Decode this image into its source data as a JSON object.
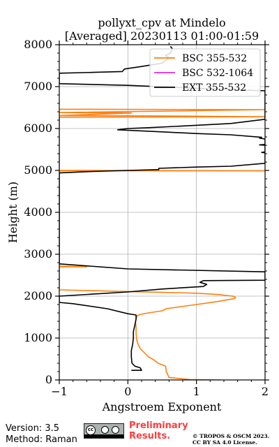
{
  "chart_data": {
    "type": "line",
    "title": "pollyxt_cpv at Mindelo",
    "subtitle": "[Averaged] 20230113 01:00-01:59",
    "xlabel": "Angstroem Exponent",
    "ylabel": "Height (m)",
    "xlim": [
      -1,
      2
    ],
    "ylim": [
      0,
      8000
    ],
    "x_ticks": [
      -1,
      0,
      1,
      2
    ],
    "x_tick_labels": [
      "−1",
      "0",
      "1",
      "2"
    ],
    "y_ticks": [
      0,
      1000,
      2000,
      3000,
      4000,
      5000,
      6000,
      7000,
      8000
    ],
    "y_tick_labels": [
      "0",
      "1000",
      "2000",
      "3000",
      "4000",
      "5000",
      "6000",
      "7000",
      "8000"
    ],
    "grid": true,
    "legend_position": "top-right",
    "series": [
      {
        "name": "BSC 355-532",
        "color": "#ff7f0e",
        "points": [
          [
            1.35,
            0
          ],
          [
            0.9,
            10
          ],
          [
            0.6,
            60
          ],
          [
            0.56,
            200
          ],
          [
            0.55,
            330
          ],
          [
            0.44,
            400
          ],
          [
            0.38,
            480
          ],
          [
            0.3,
            550
          ],
          [
            0.24,
            650
          ],
          [
            0.18,
            750
          ],
          [
            0.15,
            850
          ],
          [
            0.13,
            950
          ],
          [
            0.12,
            1100
          ],
          [
            0.12,
            1250
          ],
          [
            0.11,
            1400
          ],
          [
            0.13,
            1520
          ],
          [
            0.17,
            1560
          ],
          [
            0.3,
            1600
          ],
          [
            0.5,
            1650
          ],
          [
            0.56,
            1700
          ],
          [
            0.78,
            1750
          ],
          [
            1.0,
            1800
          ],
          [
            1.3,
            1870
          ],
          [
            1.55,
            1940
          ],
          [
            1.57,
            1970
          ],
          [
            1.53,
            2000
          ],
          [
            1.3,
            2040
          ],
          [
            1.0,
            2070
          ],
          [
            0.5,
            2090
          ],
          [
            0.0,
            2110
          ],
          [
            -0.5,
            2130
          ],
          [
            -1.0,
            2150
          ],
          [
            -1.0,
            2700
          ],
          [
            -0.6,
            2700
          ],
          [
            -1.0,
            2715
          ],
          [
            -1.0,
            4990
          ],
          [
            2.0,
            4990
          ],
          [
            -1.0,
            5000
          ],
          [
            -1.0,
            6270
          ],
          [
            2.0,
            6280
          ],
          [
            0.5,
            6300
          ],
          [
            -1.0,
            6310
          ],
          [
            0.05,
            6370
          ],
          [
            -1.0,
            6380
          ],
          [
            2.0,
            6450
          ],
          [
            -1.0,
            6460
          ]
        ]
      },
      {
        "name": "BSC 532-1064",
        "color": "#e32ad6",
        "points": []
      },
      {
        "name": "EXT 355-532",
        "color": "#000000",
        "points": [
          [
            0.05,
            230
          ],
          [
            0.2,
            230
          ],
          [
            0.18,
            290
          ],
          [
            0.1,
            330
          ],
          [
            0.06,
            400
          ],
          [
            0.05,
            550
          ],
          [
            0.05,
            700
          ],
          [
            0.07,
            850
          ],
          [
            0.08,
            1000
          ],
          [
            0.08,
            1150
          ],
          [
            0.1,
            1300
          ],
          [
            0.12,
            1450
          ],
          [
            0.12,
            1550
          ],
          [
            0.0,
            1580
          ],
          [
            -0.3,
            1700
          ],
          [
            -0.8,
            1820
          ],
          [
            -1.0,
            1850
          ],
          [
            -1.0,
            2000
          ],
          [
            0.0,
            2100
          ],
          [
            0.5,
            2170
          ],
          [
            1.1,
            2230
          ],
          [
            1.15,
            2280
          ],
          [
            1.05,
            2330
          ],
          [
            1.1,
            2370
          ],
          [
            2.0,
            2380
          ],
          [
            2.0,
            2580
          ],
          [
            0.0,
            2650
          ],
          [
            -1.0,
            2770
          ],
          [
            -1.0,
            4940
          ],
          [
            -0.6,
            4970
          ],
          [
            0.0,
            5000
          ],
          [
            0.45,
            5020
          ],
          [
            0.45,
            5050
          ],
          [
            1.0,
            5080
          ],
          [
            1.5,
            5100
          ],
          [
            2.0,
            5170
          ],
          [
            2.0,
            5420
          ],
          [
            1.95,
            5430
          ],
          [
            2.0,
            5440
          ],
          [
            2.0,
            5600
          ],
          [
            1.92,
            5610
          ],
          [
            2.0,
            5620
          ],
          [
            2.0,
            5750
          ],
          [
            1.92,
            5770
          ],
          [
            1.95,
            5790
          ],
          [
            1.5,
            5850
          ],
          [
            1.0,
            5880
          ],
          [
            0.5,
            5920
          ],
          [
            -0.15,
            5970
          ],
          [
            0.0,
            6000
          ],
          [
            0.3,
            6020
          ],
          [
            0.8,
            6060
          ],
          [
            1.5,
            6120
          ],
          [
            2.0,
            6220
          ],
          [
            2.0,
            6900
          ],
          [
            1.0,
            6960
          ],
          [
            0.0,
            7030
          ],
          [
            -1.0,
            7070
          ],
          [
            -1.0,
            7320
          ],
          [
            -0.5,
            7340
          ],
          [
            -0.08,
            7360
          ],
          [
            -0.05,
            7420
          ],
          [
            0.2,
            7480
          ],
          [
            0.5,
            7560
          ],
          [
            0.6,
            7680
          ],
          [
            0.55,
            7740
          ],
          [
            0.62,
            7800
          ],
          [
            0.65,
            7900
          ],
          [
            0.62,
            7960
          ]
        ]
      }
    ]
  },
  "footer": {
    "version": "Version: 3.5",
    "method": "Method: Raman",
    "license_badge": "cc-by-sa-badge",
    "preliminary": "Preliminary",
    "results": "Results.",
    "copyright_line1": "© TROPOS & OSCM 2023.",
    "copyright_line2": "CC BY SA 4.0 License.",
    "preliminary_color": "#ff3b3b"
  }
}
